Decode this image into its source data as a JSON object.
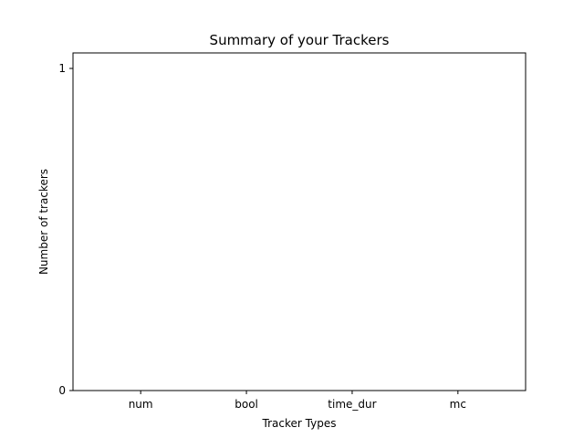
{
  "chart_data": {
    "type": "bar",
    "title": "Summary of your Trackers",
    "xlabel": "Tracker Types",
    "ylabel": "Number of trackers",
    "categories": [
      "num",
      "bool",
      "time_dur",
      "mc"
    ],
    "values": [
      0,
      0,
      0,
      0
    ],
    "ylim": [
      0,
      1
    ],
    "yticks": [
      0,
      1
    ],
    "grid": false,
    "bar_color": "#1f77b4"
  }
}
